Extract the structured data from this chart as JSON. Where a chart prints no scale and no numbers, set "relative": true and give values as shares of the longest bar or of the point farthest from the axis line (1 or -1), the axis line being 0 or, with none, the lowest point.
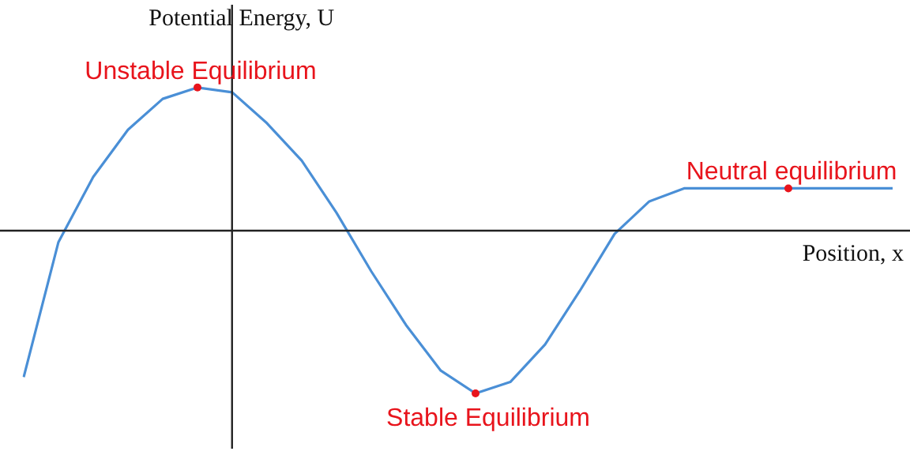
{
  "chart_data": {
    "type": "line",
    "relative": true,
    "xlabel": "Position, x",
    "ylabel": "Potential Energy, U",
    "legend": false,
    "marker": "none",
    "line_style": "solid",
    "categories": [
      null,
      null,
      null,
      null,
      null,
      null,
      null,
      null,
      null,
      null,
      null,
      null,
      null,
      null,
      null,
      null,
      null,
      null,
      null,
      null,
      null,
      null,
      null,
      null,
      null,
      null
    ],
    "series": [
      {
        "color": "#4a8fd6",
        "values": [
          -0.9,
          -0.07,
          0.33,
          0.62,
          0.81,
          0.88,
          0.85,
          0.66,
          0.43,
          0.11,
          -0.25,
          -0.58,
          -0.86,
          -1,
          -0.93,
          -0.7,
          -0.37,
          -0.02,
          0.18,
          0.26,
          0.26,
          0.26,
          0.26,
          0.26,
          0.26,
          0.26
        ]
      }
    ],
    "annotations": [
      {
        "text": "Unstable Equilibrium",
        "y": 0.88
      },
      {
        "text": "Stable Equilibrium",
        "y": -1
      },
      {
        "text": "Neutral equilibrium",
        "y": 0.26
      }
    ]
  }
}
